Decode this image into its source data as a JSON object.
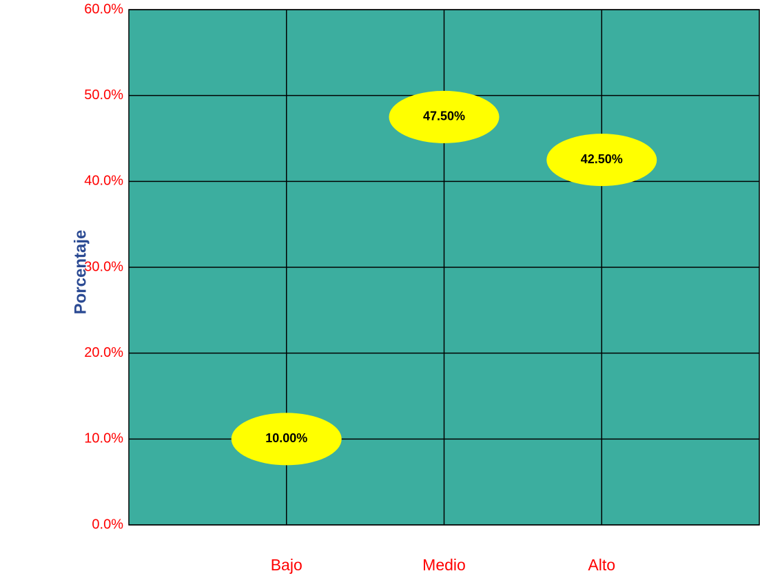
{
  "chart_data": {
    "type": "scatter",
    "y_label": "Porcentaje",
    "categories": [
      "Bajo",
      "Medio",
      "Alto"
    ],
    "values": [
      10,
      47.5,
      42.5
    ],
    "value_labels": [
      "10.00%",
      "47.50%",
      "42.50%"
    ],
    "color": "#ffff00",
    "background": "#3cae9f",
    "ylim": [
      0,
      60
    ],
    "yticks": [
      {
        "value": 0,
        "label": "0.0%"
      },
      {
        "value": 10,
        "label": "10.0%"
      },
      {
        "value": 20,
        "label": "20.0%"
      },
      {
        "value": 30,
        "label": "30.0%"
      },
      {
        "value": 40,
        "label": "40.0%"
      },
      {
        "value": 50,
        "label": "50.0%"
      },
      {
        "value": 60,
        "label": "60.0%"
      }
    ],
    "grid": true
  }
}
